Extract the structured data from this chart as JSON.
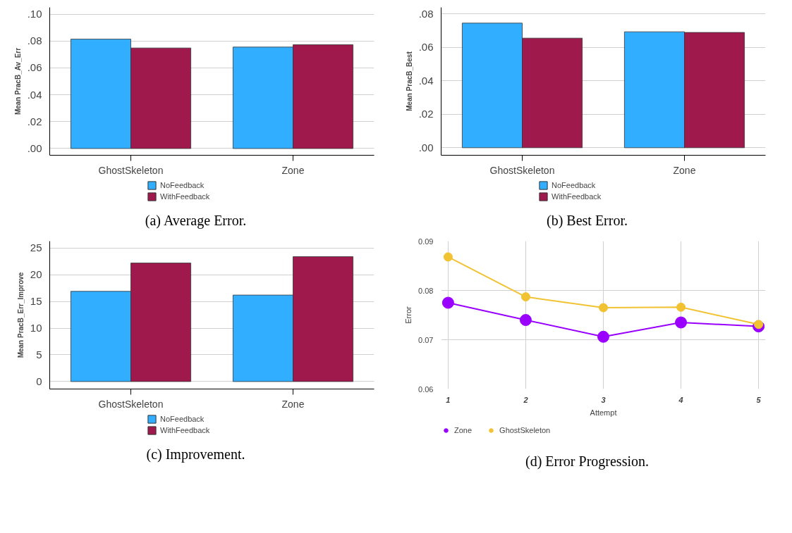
{
  "chart_data": [
    {
      "type": "bar",
      "categories": [
        "GhostSkeleton",
        "Zone"
      ],
      "ylabel": "Mean PracB_Av_Err",
      "ylim": [
        -0.005,
        0.105
      ],
      "yticks": [
        {
          "value": 0,
          "label": ".00"
        },
        {
          "value": 0.02,
          "label": ".02"
        },
        {
          "value": 0.04,
          "label": ".04"
        },
        {
          "value": 0.06,
          "label": ".06"
        },
        {
          "value": 0.08,
          "label": ".08"
        },
        {
          "value": 0.1,
          "label": ".10"
        }
      ],
      "series": [
        {
          "name": "NoFeedback",
          "color": "#31aeff",
          "values": [
            0.0814,
            0.0755
          ]
        },
        {
          "name": "WithFeedback",
          "color": "#a0194c",
          "values": [
            0.0748,
            0.0772
          ]
        }
      ],
      "grid": "y",
      "legend": "bottom",
      "annotations": [
        "(a) Average Error."
      ]
    },
    {
      "type": "bar",
      "categories": [
        "GhostSkeleton",
        "Zone"
      ],
      "ylabel": "Mean PracB_Best",
      "ylim": [
        -0.0045,
        0.084
      ],
      "yticks": [
        {
          "value": 0,
          "label": ".00"
        },
        {
          "value": 0.02,
          "label": ".02"
        },
        {
          "value": 0.04,
          "label": ".04"
        },
        {
          "value": 0.06,
          "label": ".06"
        },
        {
          "value": 0.08,
          "label": ".08"
        }
      ],
      "series": [
        {
          "name": "NoFeedback",
          "color": "#31aeff",
          "values": [
            0.0746,
            0.0694
          ]
        },
        {
          "name": "WithFeedback",
          "color": "#a0194c",
          "values": [
            0.0656,
            0.069
          ]
        }
      ],
      "grid": "y",
      "legend": "bottom",
      "annotations": [
        "(b) Best Error."
      ]
    },
    {
      "type": "bar",
      "categories": [
        "GhostSkeleton",
        "Zone"
      ],
      "ylabel": "Mean PracB_Err_Improve",
      "ylim": [
        -1.4,
        26.3
      ],
      "yticks": [
        0,
        5,
        10,
        15,
        20,
        25
      ],
      "series": [
        {
          "name": "NoFeedback",
          "color": "#31aeff",
          "values": [
            16.9,
            16.2
          ]
        },
        {
          "name": "WithFeedback",
          "color": "#a0194c",
          "values": [
            22.2,
            23.4
          ]
        }
      ],
      "grid": "y",
      "legend": "bottom",
      "annotations": [
        "(c) Improvement."
      ]
    },
    {
      "type": "line",
      "x": [
        1,
        2,
        3,
        4,
        5
      ],
      "xlabel": "Attempt",
      "ylabel": "Error",
      "xlim": [
        0.91,
        5.09
      ],
      "ylim": [
        0.06,
        0.09
      ],
      "xticks": [
        1,
        2,
        3,
        4,
        5
      ],
      "yticks": [
        0.06,
        0.07,
        0.08,
        0.09
      ],
      "series": [
        {
          "name": "Zone",
          "color": "#9900ff",
          "values": [
            0.0775,
            0.074,
            0.0706,
            0.0735,
            0.0727
          ]
        },
        {
          "name": "GhostSkeleton",
          "color": "#f1c232",
          "values": [
            0.0868,
            0.0787,
            0.0765,
            0.0766,
            0.0731
          ]
        }
      ],
      "grid": true,
      "legend": "bottom",
      "marker": "circle",
      "line_style": "solid",
      "annotations": [
        "(d) Error Progression."
      ]
    }
  ]
}
